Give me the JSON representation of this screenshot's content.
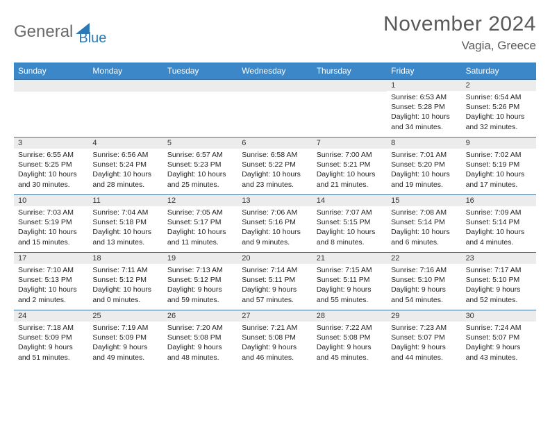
{
  "brand": {
    "part1": "General",
    "part2": "Blue"
  },
  "title": "November 2024",
  "location": "Vagia, Greece",
  "colors": {
    "header_bar": "#3b87c8",
    "week_divider": "#3b6fa0",
    "daynum_bg": "#ececec",
    "brand_gray": "#6a6a6a",
    "brand_blue": "#2a7ab8",
    "title_gray": "#5a5a5a"
  },
  "dow": [
    "Sunday",
    "Monday",
    "Tuesday",
    "Wednesday",
    "Thursday",
    "Friday",
    "Saturday"
  ],
  "weeks": [
    [
      {
        "blank": true
      },
      {
        "blank": true
      },
      {
        "blank": true
      },
      {
        "blank": true
      },
      {
        "blank": true
      },
      {
        "n": "1",
        "sr": "Sunrise: 6:53 AM",
        "ss": "Sunset: 5:28 PM",
        "d1": "Daylight: 10 hours",
        "d2": "and 34 minutes."
      },
      {
        "n": "2",
        "sr": "Sunrise: 6:54 AM",
        "ss": "Sunset: 5:26 PM",
        "d1": "Daylight: 10 hours",
        "d2": "and 32 minutes."
      }
    ],
    [
      {
        "n": "3",
        "sr": "Sunrise: 6:55 AM",
        "ss": "Sunset: 5:25 PM",
        "d1": "Daylight: 10 hours",
        "d2": "and 30 minutes."
      },
      {
        "n": "4",
        "sr": "Sunrise: 6:56 AM",
        "ss": "Sunset: 5:24 PM",
        "d1": "Daylight: 10 hours",
        "d2": "and 28 minutes."
      },
      {
        "n": "5",
        "sr": "Sunrise: 6:57 AM",
        "ss": "Sunset: 5:23 PM",
        "d1": "Daylight: 10 hours",
        "d2": "and 25 minutes."
      },
      {
        "n": "6",
        "sr": "Sunrise: 6:58 AM",
        "ss": "Sunset: 5:22 PM",
        "d1": "Daylight: 10 hours",
        "d2": "and 23 minutes."
      },
      {
        "n": "7",
        "sr": "Sunrise: 7:00 AM",
        "ss": "Sunset: 5:21 PM",
        "d1": "Daylight: 10 hours",
        "d2": "and 21 minutes."
      },
      {
        "n": "8",
        "sr": "Sunrise: 7:01 AM",
        "ss": "Sunset: 5:20 PM",
        "d1": "Daylight: 10 hours",
        "d2": "and 19 minutes."
      },
      {
        "n": "9",
        "sr": "Sunrise: 7:02 AM",
        "ss": "Sunset: 5:19 PM",
        "d1": "Daylight: 10 hours",
        "d2": "and 17 minutes."
      }
    ],
    [
      {
        "n": "10",
        "sr": "Sunrise: 7:03 AM",
        "ss": "Sunset: 5:19 PM",
        "d1": "Daylight: 10 hours",
        "d2": "and 15 minutes."
      },
      {
        "n": "11",
        "sr": "Sunrise: 7:04 AM",
        "ss": "Sunset: 5:18 PM",
        "d1": "Daylight: 10 hours",
        "d2": "and 13 minutes."
      },
      {
        "n": "12",
        "sr": "Sunrise: 7:05 AM",
        "ss": "Sunset: 5:17 PM",
        "d1": "Daylight: 10 hours",
        "d2": "and 11 minutes."
      },
      {
        "n": "13",
        "sr": "Sunrise: 7:06 AM",
        "ss": "Sunset: 5:16 PM",
        "d1": "Daylight: 10 hours",
        "d2": "and 9 minutes."
      },
      {
        "n": "14",
        "sr": "Sunrise: 7:07 AM",
        "ss": "Sunset: 5:15 PM",
        "d1": "Daylight: 10 hours",
        "d2": "and 8 minutes."
      },
      {
        "n": "15",
        "sr": "Sunrise: 7:08 AM",
        "ss": "Sunset: 5:14 PM",
        "d1": "Daylight: 10 hours",
        "d2": "and 6 minutes."
      },
      {
        "n": "16",
        "sr": "Sunrise: 7:09 AM",
        "ss": "Sunset: 5:14 PM",
        "d1": "Daylight: 10 hours",
        "d2": "and 4 minutes."
      }
    ],
    [
      {
        "n": "17",
        "sr": "Sunrise: 7:10 AM",
        "ss": "Sunset: 5:13 PM",
        "d1": "Daylight: 10 hours",
        "d2": "and 2 minutes."
      },
      {
        "n": "18",
        "sr": "Sunrise: 7:11 AM",
        "ss": "Sunset: 5:12 PM",
        "d1": "Daylight: 10 hours",
        "d2": "and 0 minutes."
      },
      {
        "n": "19",
        "sr": "Sunrise: 7:13 AM",
        "ss": "Sunset: 5:12 PM",
        "d1": "Daylight: 9 hours",
        "d2": "and 59 minutes."
      },
      {
        "n": "20",
        "sr": "Sunrise: 7:14 AM",
        "ss": "Sunset: 5:11 PM",
        "d1": "Daylight: 9 hours",
        "d2": "and 57 minutes."
      },
      {
        "n": "21",
        "sr": "Sunrise: 7:15 AM",
        "ss": "Sunset: 5:11 PM",
        "d1": "Daylight: 9 hours",
        "d2": "and 55 minutes."
      },
      {
        "n": "22",
        "sr": "Sunrise: 7:16 AM",
        "ss": "Sunset: 5:10 PM",
        "d1": "Daylight: 9 hours",
        "d2": "and 54 minutes."
      },
      {
        "n": "23",
        "sr": "Sunrise: 7:17 AM",
        "ss": "Sunset: 5:10 PM",
        "d1": "Daylight: 9 hours",
        "d2": "and 52 minutes."
      }
    ],
    [
      {
        "n": "24",
        "sr": "Sunrise: 7:18 AM",
        "ss": "Sunset: 5:09 PM",
        "d1": "Daylight: 9 hours",
        "d2": "and 51 minutes."
      },
      {
        "n": "25",
        "sr": "Sunrise: 7:19 AM",
        "ss": "Sunset: 5:09 PM",
        "d1": "Daylight: 9 hours",
        "d2": "and 49 minutes."
      },
      {
        "n": "26",
        "sr": "Sunrise: 7:20 AM",
        "ss": "Sunset: 5:08 PM",
        "d1": "Daylight: 9 hours",
        "d2": "and 48 minutes."
      },
      {
        "n": "27",
        "sr": "Sunrise: 7:21 AM",
        "ss": "Sunset: 5:08 PM",
        "d1": "Daylight: 9 hours",
        "d2": "and 46 minutes."
      },
      {
        "n": "28",
        "sr": "Sunrise: 7:22 AM",
        "ss": "Sunset: 5:08 PM",
        "d1": "Daylight: 9 hours",
        "d2": "and 45 minutes."
      },
      {
        "n": "29",
        "sr": "Sunrise: 7:23 AM",
        "ss": "Sunset: 5:07 PM",
        "d1": "Daylight: 9 hours",
        "d2": "and 44 minutes."
      },
      {
        "n": "30",
        "sr": "Sunrise: 7:24 AM",
        "ss": "Sunset: 5:07 PM",
        "d1": "Daylight: 9 hours",
        "d2": "and 43 minutes."
      }
    ]
  ]
}
